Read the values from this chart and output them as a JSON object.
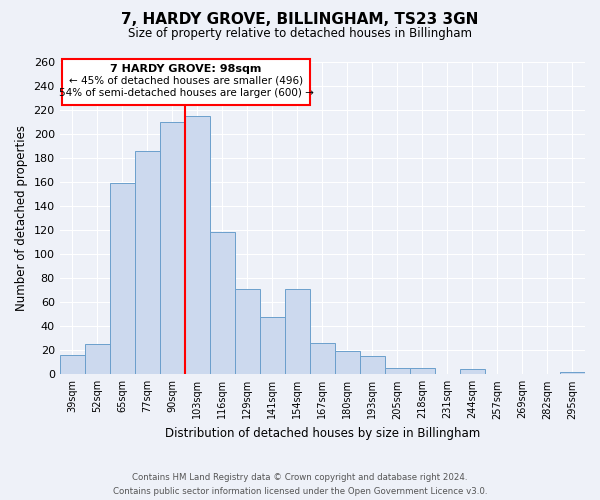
{
  "title": "7, HARDY GROVE, BILLINGHAM, TS23 3GN",
  "subtitle": "Size of property relative to detached houses in Billingham",
  "xlabel": "Distribution of detached houses by size in Billingham",
  "ylabel": "Number of detached properties",
  "categories": [
    "39sqm",
    "52sqm",
    "65sqm",
    "77sqm",
    "90sqm",
    "103sqm",
    "116sqm",
    "129sqm",
    "141sqm",
    "154sqm",
    "167sqm",
    "180sqm",
    "193sqm",
    "205sqm",
    "218sqm",
    "231sqm",
    "244sqm",
    "257sqm",
    "269sqm",
    "282sqm",
    "295sqm"
  ],
  "values": [
    16,
    25,
    159,
    186,
    210,
    215,
    118,
    71,
    48,
    71,
    26,
    19,
    15,
    5,
    5,
    0,
    4,
    0,
    0,
    0,
    2
  ],
  "bar_color": "#ccd9ee",
  "bar_edge_color": "#6b9fcc",
  "redline_x": 4.5,
  "ylim": [
    0,
    260
  ],
  "yticks": [
    0,
    20,
    40,
    60,
    80,
    100,
    120,
    140,
    160,
    180,
    200,
    220,
    240,
    260
  ],
  "annotation_title": "7 HARDY GROVE: 98sqm",
  "annotation_line1": "← 45% of detached houses are smaller (496)",
  "annotation_line2": "54% of semi-detached houses are larger (600) →",
  "footer1": "Contains HM Land Registry data © Crown copyright and database right 2024.",
  "footer2": "Contains public sector information licensed under the Open Government Licence v3.0.",
  "background_color": "#eef1f8",
  "grid_color": "#ffffff"
}
